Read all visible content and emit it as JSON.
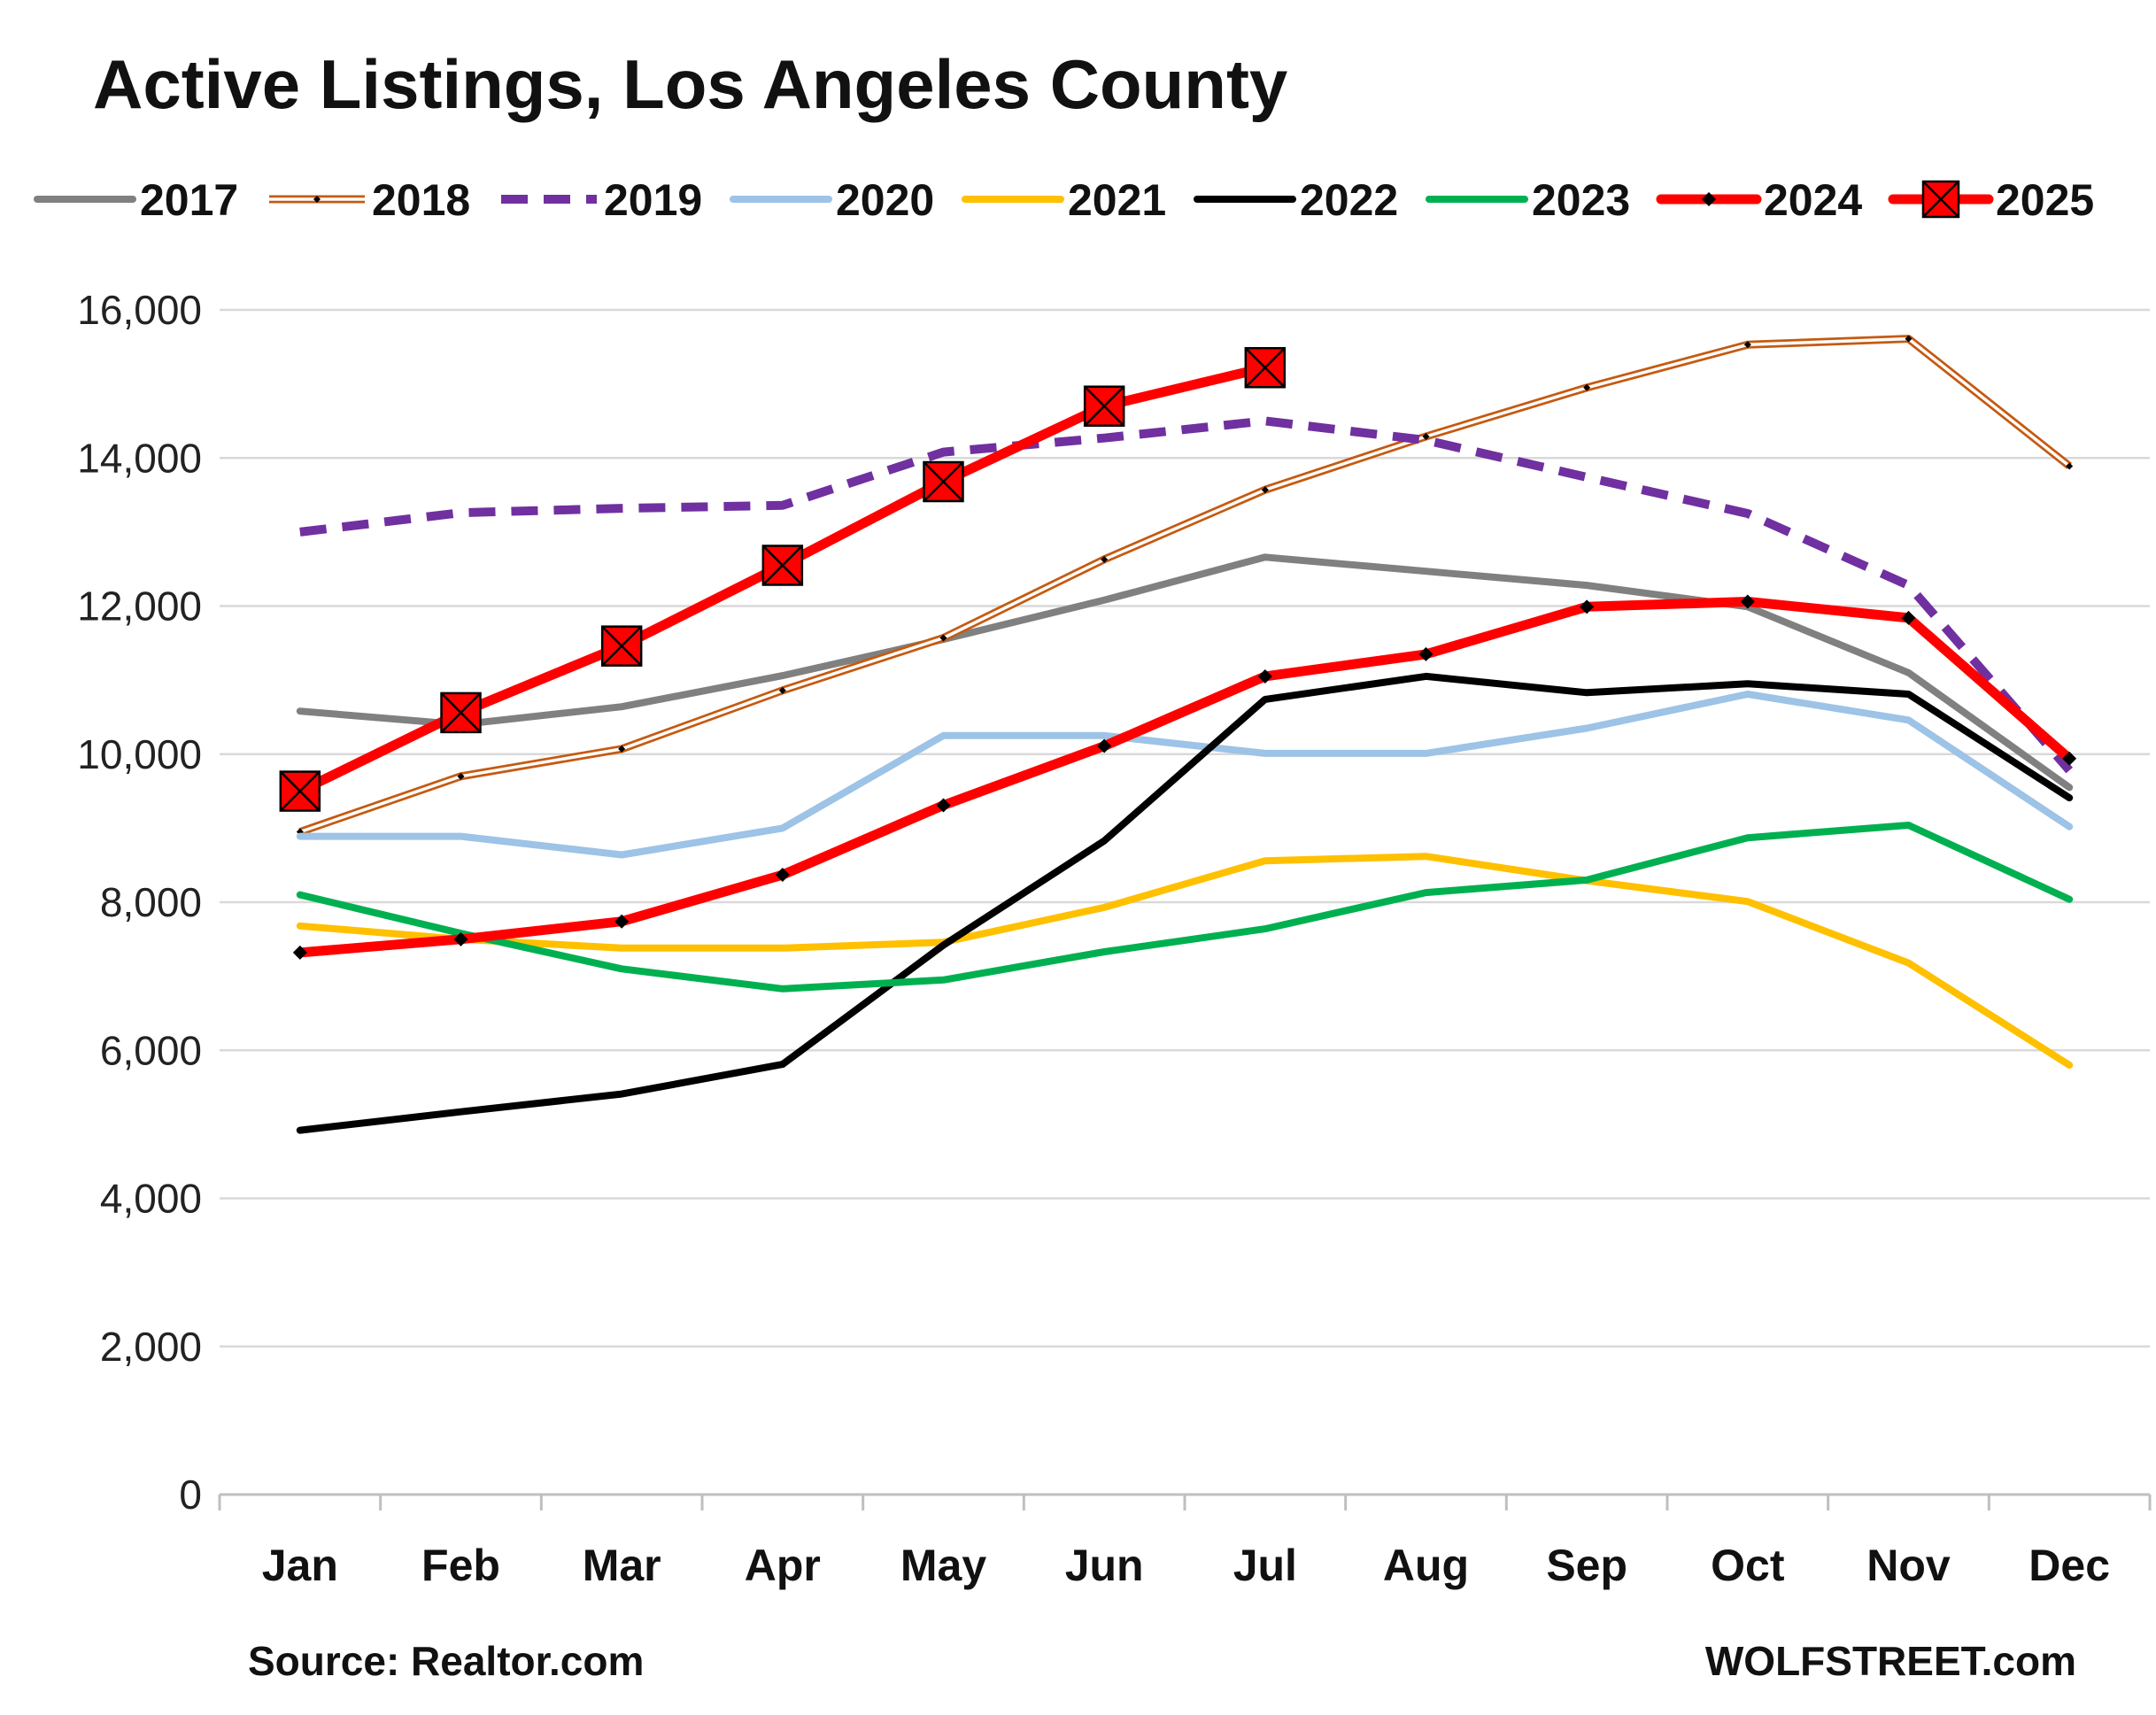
{
  "chart_data": {
    "type": "line",
    "title": "Active Listings, Los Angeles County",
    "source": "Source: Realtor.com",
    "brand": "WOLFSTREET.com",
    "categories": [
      "Jan",
      "Feb",
      "Mar",
      "Apr",
      "May",
      "Jun",
      "Jul",
      "Aug",
      "Sep",
      "Oct",
      "Nov",
      "Dec"
    ],
    "ylim": [
      0,
      16000
    ],
    "yticks": [
      0,
      2000,
      4000,
      6000,
      8000,
      10000,
      12000,
      14000,
      16000
    ],
    "ytick_labels": [
      "0",
      "2,000",
      "4,000",
      "6,000",
      "8,000",
      "10,000",
      "12,000",
      "14,000",
      "16,000"
    ],
    "grid": true,
    "legend_position": "top",
    "series": [
      {
        "name": "2017",
        "color": "#808080",
        "style": "solid",
        "values": [
          10580,
          10400,
          10640,
          11060,
          11550,
          12080,
          12660,
          12470,
          12280,
          11990,
          11100,
          9550
        ]
      },
      {
        "name": "2018",
        "color": "#C55A11",
        "style": "double",
        "values": [
          8950,
          9700,
          10070,
          10860,
          11570,
          12630,
          13570,
          14290,
          14950,
          15530,
          15610,
          13890
        ]
      },
      {
        "name": "2019",
        "color": "#7030A0",
        "style": "dashed",
        "values": [
          13000,
          13260,
          13320,
          13360,
          14080,
          14270,
          14500,
          14240,
          13740,
          13250,
          12280,
          9780
        ]
      },
      {
        "name": "2020",
        "color": "#9DC3E6",
        "style": "solid",
        "values": [
          8890,
          8890,
          8640,
          9000,
          10250,
          10250,
          10010,
          10010,
          10350,
          10810,
          10460,
          9020
        ]
      },
      {
        "name": "2021",
        "color": "#FFC000",
        "style": "solid",
        "values": [
          7680,
          7500,
          7380,
          7380,
          7460,
          7930,
          8560,
          8620,
          8290,
          8010,
          7180,
          5800
        ]
      },
      {
        "name": "2022",
        "color": "#000000",
        "style": "solid",
        "values": [
          4920,
          5170,
          5410,
          5810,
          7420,
          8830,
          10740,
          11050,
          10830,
          10950,
          10810,
          9410
        ]
      },
      {
        "name": "2023",
        "color": "#00B050",
        "style": "solid",
        "values": [
          8100,
          7580,
          7100,
          6830,
          6950,
          7330,
          7640,
          8130,
          8300,
          8870,
          9040,
          8040
        ]
      },
      {
        "name": "2024",
        "color": "#FF0000",
        "style": "solid-dots",
        "values": [
          7320,
          7500,
          7740,
          8370,
          9310,
          10110,
          11050,
          11350,
          11990,
          12060,
          11840,
          9940
        ]
      },
      {
        "name": "2025",
        "color": "#FF0000",
        "style": "solid-boxx",
        "values": [
          9500,
          10560,
          11460,
          12550,
          13680,
          14700,
          15220,
          null,
          null,
          null,
          null,
          null
        ]
      }
    ]
  }
}
